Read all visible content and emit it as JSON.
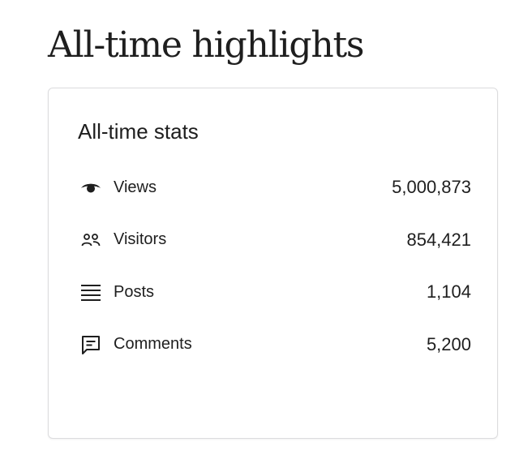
{
  "page": {
    "title": "All-time highlights"
  },
  "card": {
    "title": "All-time stats",
    "stats": [
      {
        "icon": "eye-icon",
        "label": "Views",
        "value": "5,000,873"
      },
      {
        "icon": "people-icon",
        "label": "Visitors",
        "value": "854,421"
      },
      {
        "icon": "posts-list-icon",
        "label": "Posts",
        "value": "1,104"
      },
      {
        "icon": "comment-icon",
        "label": "Comments",
        "value": "5,200"
      }
    ]
  },
  "colors": {
    "text": "#1e1e1e",
    "border": "#dcdcde",
    "background": "#ffffff"
  }
}
